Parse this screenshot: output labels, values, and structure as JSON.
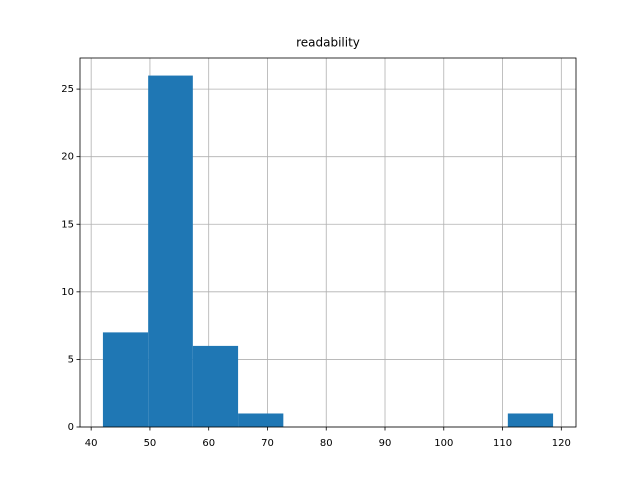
{
  "chart_data": {
    "type": "histogram",
    "title": "readability",
    "bins": [
      42.0,
      49.7,
      57.3,
      65.0,
      72.7,
      80.3,
      88.0,
      95.6,
      103.3,
      110.9,
      118.6
    ],
    "counts": [
      7,
      26,
      6,
      1,
      0,
      0,
      0,
      0,
      0,
      1
    ],
    "color": "#1f77b4",
    "xlim": [
      38.1,
      122.5
    ],
    "xticks": [
      40,
      50,
      60,
      70,
      80,
      90,
      100,
      110,
      120
    ],
    "ylim": [
      0,
      27.3
    ],
    "yticks": [
      0,
      5,
      10,
      15,
      20,
      25
    ],
    "grid": true
  }
}
